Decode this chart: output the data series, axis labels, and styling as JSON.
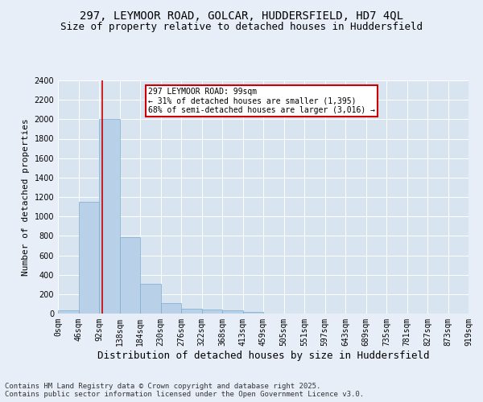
{
  "title1": "297, LEYMOOR ROAD, GOLCAR, HUDDERSFIELD, HD7 4QL",
  "title2": "Size of property relative to detached houses in Huddersfield",
  "xlabel": "Distribution of detached houses by size in Huddersfield",
  "ylabel": "Number of detached properties",
  "footnote": "Contains HM Land Registry data © Crown copyright and database right 2025.\nContains public sector information licensed under the Open Government Licence v3.0.",
  "annotation_line1": "297 LEYMOOR ROAD: 99sqm",
  "annotation_line2": "← 31% of detached houses are smaller (1,395)",
  "annotation_line3": "68% of semi-detached houses are larger (3,016) →",
  "bar_values": [
    35,
    1150,
    2000,
    790,
    305,
    110,
    50,
    45,
    30,
    18,
    0,
    0,
    0,
    0,
    0,
    0,
    0,
    0,
    0,
    0
  ],
  "bar_color": "#b8d0e8",
  "bar_edge_color": "#7aaaca",
  "vline_x": 2.16,
  "vline_color": "#cc0000",
  "categories": [
    "0sqm",
    "46sqm",
    "92sqm",
    "138sqm",
    "184sqm",
    "230sqm",
    "276sqm",
    "322sqm",
    "368sqm",
    "413sqm",
    "459sqm",
    "505sqm",
    "551sqm",
    "597sqm",
    "643sqm",
    "689sqm",
    "735sqm",
    "781sqm",
    "827sqm",
    "873sqm",
    "919sqm"
  ],
  "ylim": [
    0,
    2400
  ],
  "yticks": [
    0,
    200,
    400,
    600,
    800,
    1000,
    1200,
    1400,
    1600,
    1800,
    2000,
    2200,
    2400
  ],
  "bg_color": "#e8eef8",
  "plot_bg_color": "#d8e4f0",
  "grid_color": "#ffffff",
  "annotation_box_edge_color": "#cc0000",
  "title1_fontsize": 10,
  "title2_fontsize": 9,
  "axis_label_fontsize": 8,
  "tick_fontsize": 7,
  "annotation_fontsize": 7,
  "footnote_fontsize": 6.5
}
